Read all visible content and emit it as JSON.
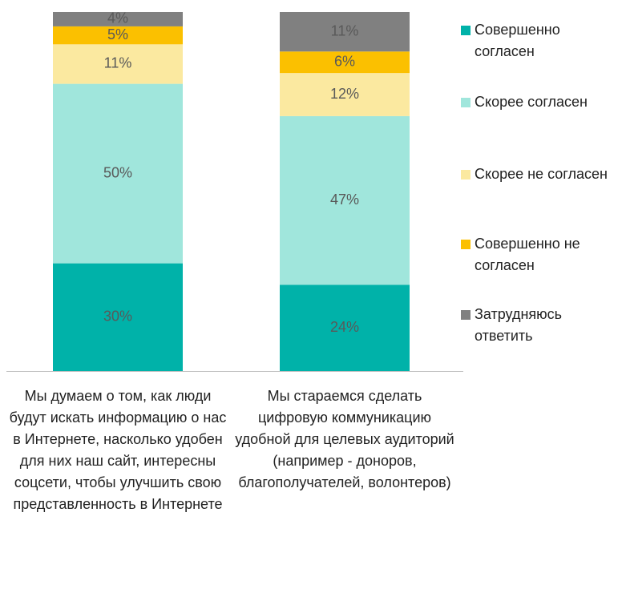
{
  "chart_data": {
    "type": "stacked_bar",
    "categories": [
      "Мы думаем о том, как люди будут искать информацию о нас в Интернете, насколько удобен для них наш сайт, интересны соцсети, чтобы улучшить свою представленность в Интернете",
      "Мы стараемся сделать цифровую коммуникацию удобной для целевых аудиторий (например - доноров, благополучателей, волонтеров)"
    ],
    "series": [
      {
        "name": "Совершенно согласен",
        "color": "#00b2a9",
        "values": [
          30,
          24
        ],
        "value_labels": [
          "30%",
          "24%"
        ]
      },
      {
        "name": "Скорее согласен",
        "color": "#a0e6dc",
        "values": [
          50,
          47
        ],
        "value_labels": [
          "50%",
          "47%"
        ]
      },
      {
        "name": "Скорее не согласен",
        "color": "#fbe9a0",
        "values": [
          11,
          12
        ],
        "value_labels": [
          "11%",
          "12%"
        ]
      },
      {
        "name": "Совершенно не согласен",
        "color": "#fbc000",
        "values": [
          5,
          6
        ],
        "value_labels": [
          "5%",
          "6%"
        ]
      },
      {
        "name": "Затрудняюсь ответить",
        "color": "#808080",
        "values": [
          4,
          11
        ],
        "value_labels": [
          "4%",
          "11%"
        ]
      }
    ]
  }
}
